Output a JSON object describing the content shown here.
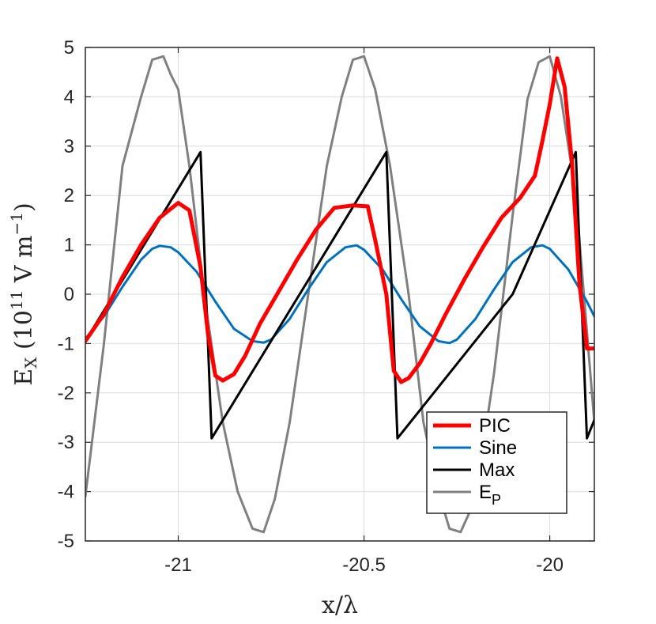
{
  "chart_data": {
    "type": "line",
    "title": "",
    "xlabel": "x/λ",
    "ylabel_main": "E",
    "ylabel_sub": "X",
    "ylabel_unit_pre": "(10",
    "ylabel_unit_exp": "11",
    "ylabel_unit_mid": "V m",
    "ylabel_unit_exp2": "−1",
    "ylabel_unit_post": ")",
    "xlim": [
      -21.25,
      -19.88
    ],
    "ylim": [
      -5,
      5
    ],
    "xticks": [
      -21,
      -20.5,
      -20
    ],
    "xtick_labels": [
      "-21",
      "-20.5",
      "-20"
    ],
    "yticks": [
      -5,
      -4,
      -3,
      -2,
      -1,
      0,
      1,
      2,
      3,
      4,
      5
    ],
    "ytick_labels": [
      "-5",
      "-4",
      "-3",
      "-2",
      "-1",
      "0",
      "1",
      "2",
      "3",
      "4",
      "5"
    ],
    "grid": true,
    "legend_position": "bottom-right",
    "series": [
      {
        "name": "PIC",
        "color": "#ff0000",
        "width": 5,
        "x": [
          -21.25,
          -21.2,
          -21.15,
          -21.1,
          -21.05,
          -21.0,
          -20.97,
          -20.94,
          -20.92,
          -20.9,
          -20.88,
          -20.85,
          -20.82,
          -20.78,
          -20.73,
          -20.68,
          -20.63,
          -20.58,
          -20.53,
          -20.49,
          -20.47,
          -20.44,
          -20.42,
          -20.4,
          -20.38,
          -20.35,
          -20.32,
          -20.28,
          -20.23,
          -20.18,
          -20.13,
          -20.08,
          -20.04,
          -20.02,
          -20.0,
          -19.98,
          -19.96,
          -19.94,
          -19.92,
          -19.9,
          -19.88
        ],
        "y": [
          -0.95,
          -0.4,
          0.35,
          1.0,
          1.55,
          1.85,
          1.7,
          0.55,
          -0.8,
          -1.65,
          -1.75,
          -1.62,
          -1.25,
          -0.6,
          0.05,
          0.7,
          1.3,
          1.75,
          1.8,
          1.78,
          1.1,
          0.0,
          -1.55,
          -1.78,
          -1.7,
          -1.4,
          -1.0,
          -0.4,
          0.3,
          0.95,
          1.55,
          1.95,
          2.4,
          3.1,
          3.85,
          4.78,
          4.2,
          2.65,
          0.2,
          -1.1,
          -1.1
        ],
        "y_note": "red line thickest"
      },
      {
        "name": "Sine",
        "color": "#0072bd",
        "width": 3,
        "x": [
          -21.25,
          -21.2,
          -21.15,
          -21.1,
          -21.07,
          -21.05,
          -21.02,
          -21.0,
          -20.95,
          -20.9,
          -20.85,
          -20.8,
          -20.77,
          -20.75,
          -20.7,
          -20.65,
          -20.6,
          -20.55,
          -20.52,
          -20.5,
          -20.45,
          -20.4,
          -20.35,
          -20.3,
          -20.27,
          -20.25,
          -20.2,
          -20.15,
          -20.1,
          -20.05,
          -20.02,
          -20.0,
          -19.95,
          -19.9,
          -19.88
        ],
        "y": [
          -0.9,
          -0.45,
          0.15,
          0.7,
          0.92,
          0.98,
          0.95,
          0.85,
          0.45,
          -0.15,
          -0.7,
          -0.95,
          -0.98,
          -0.92,
          -0.5,
          0.1,
          0.65,
          0.95,
          0.99,
          0.9,
          0.5,
          -0.1,
          -0.65,
          -0.95,
          -0.99,
          -0.92,
          -0.5,
          0.1,
          0.65,
          0.95,
          0.99,
          0.92,
          0.5,
          -0.15,
          -0.45
        ]
      },
      {
        "name": "Max",
        "color": "#000000",
        "width": 3,
        "x": [
          -21.25,
          -20.94,
          -20.91,
          -20.6,
          -20.44,
          -20.41,
          -20.1,
          -19.93,
          -19.9,
          -19.88
        ],
        "y": [
          -0.95,
          2.88,
          -2.92,
          0.9,
          2.88,
          -2.92,
          0.0,
          2.88,
          -2.92,
          -2.55
        ]
      },
      {
        "name": "E",
        "name_sub": "P",
        "color": "#808080",
        "width": 3,
        "x": [
          -21.25,
          -21.2,
          -21.15,
          -21.1,
          -21.07,
          -21.04,
          -21.02,
          -21.0,
          -20.97,
          -20.93,
          -20.88,
          -20.84,
          -20.8,
          -20.77,
          -20.74,
          -20.7,
          -20.65,
          -20.6,
          -20.56,
          -20.53,
          -20.5,
          -20.47,
          -20.43,
          -20.38,
          -20.34,
          -20.3,
          -20.27,
          -20.24,
          -20.2,
          -20.15,
          -20.1,
          -20.06,
          -20.03,
          -20.0,
          -19.97,
          -19.93,
          -19.88
        ],
        "y": [
          -4.1,
          -1.0,
          2.6,
          4.0,
          4.75,
          4.82,
          4.45,
          4.15,
          2.6,
          0.0,
          -2.6,
          -4.0,
          -4.75,
          -4.82,
          -4.15,
          -2.6,
          0.0,
          2.6,
          4.0,
          4.75,
          4.82,
          4.15,
          2.6,
          0.0,
          -2.6,
          -4.0,
          -4.75,
          -4.82,
          -4.15,
          -1.6,
          1.6,
          3.95,
          4.7,
          4.82,
          4.0,
          2.0,
          -2.6
        ]
      }
    ]
  }
}
